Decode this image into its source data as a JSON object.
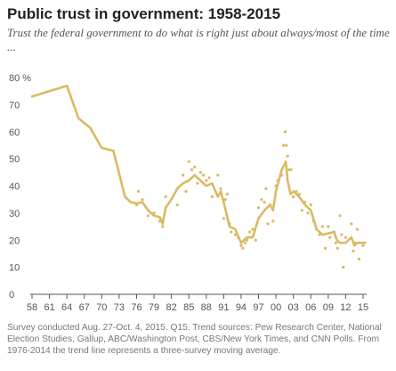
{
  "header": {
    "title": "Public trust in government: 1958-2015",
    "subtitle": "Trust the federal government to do what is right just about always/most of the time ..."
  },
  "note": "Survey conducted Aug. 27-Oct. 4, 2015. Q15. Trend sources: Pew Research Center, National Election Studies, Gallup, ABC/Washington Post, CBS/New York Times, and CNN Polls. From 1976-2014 the trend line represents a three-survey moving average.",
  "colors": {
    "series": "#D9BA64",
    "axis": "#555555"
  },
  "chart_data": {
    "type": "line",
    "title": "Public trust in government: 1958-2015",
    "subtitle": "Trust the federal government to do what is right just about always/most of the time ...",
    "xlim": [
      1958,
      2015
    ],
    "ylim": [
      0,
      80
    ],
    "x_tick_labels": [
      "58",
      "61",
      "64",
      "67",
      "70",
      "73",
      "76",
      "79",
      "82",
      "85",
      "88",
      "91",
      "94",
      "97",
      "00",
      "03",
      "06",
      "09",
      "12",
      "15"
    ],
    "y_tick_labels": [
      "0",
      "10",
      "20",
      "30",
      "40",
      "50",
      "60",
      "70",
      "80 %"
    ],
    "grid": false,
    "series": [
      {
        "type": "line",
        "points": [
          [
            1958,
            73
          ],
          [
            1964,
            77
          ],
          [
            1966,
            65
          ],
          [
            1968,
            61.5
          ],
          [
            1970,
            54
          ],
          [
            1972,
            53
          ],
          [
            1974,
            36
          ],
          [
            1975,
            34
          ],
          [
            1976,
            33.5
          ],
          [
            1977,
            34
          ],
          [
            1978,
            31
          ],
          [
            1979,
            29
          ],
          [
            1980,
            28.5
          ],
          [
            1980.5,
            26
          ],
          [
            1981,
            32
          ],
          [
            1982,
            35
          ],
          [
            1983,
            39
          ],
          [
            1984,
            41
          ],
          [
            1985,
            42
          ],
          [
            1986,
            44
          ],
          [
            1987,
            42
          ],
          [
            1988,
            40
          ],
          [
            1989,
            41
          ],
          [
            1990,
            36
          ],
          [
            1990.5,
            38
          ],
          [
            1991,
            34
          ],
          [
            1992,
            25
          ],
          [
            1993,
            24
          ],
          [
            1994,
            19
          ],
          [
            1995,
            21
          ],
          [
            1996,
            21
          ],
          [
            1997,
            28
          ],
          [
            1998,
            31
          ],
          [
            1999,
            33
          ],
          [
            1999.5,
            31
          ],
          [
            2000,
            38
          ],
          [
            2001,
            46
          ],
          [
            2001.7,
            49
          ],
          [
            2002,
            42
          ],
          [
            2002.5,
            37
          ],
          [
            2003,
            38
          ],
          [
            2004,
            36
          ],
          [
            2005,
            33
          ],
          [
            2006,
            31
          ],
          [
            2007,
            24
          ],
          [
            2008,
            22
          ],
          [
            2009,
            22.5
          ],
          [
            2010,
            23
          ],
          [
            2010.5,
            20
          ],
          [
            2011,
            19
          ],
          [
            2012,
            19
          ],
          [
            2013,
            21
          ],
          [
            2013.5,
            18
          ],
          [
            2014,
            19
          ],
          [
            2015,
            19
          ]
        ]
      },
      {
        "type": "scatter",
        "points": [
          [
            1976,
            33
          ],
          [
            1976.3,
            38
          ],
          [
            1977,
            35
          ],
          [
            1978,
            29
          ],
          [
            1979,
            30
          ],
          [
            1980,
            27
          ],
          [
            1980.5,
            25
          ],
          [
            1981,
            36
          ],
          [
            1983,
            33
          ],
          [
            1984,
            44
          ],
          [
            1984.5,
            38
          ],
          [
            1985,
            49
          ],
          [
            1985.5,
            46
          ],
          [
            1986,
            47
          ],
          [
            1986.5,
            41
          ],
          [
            1987,
            45
          ],
          [
            1987.5,
            44
          ],
          [
            1988,
            42
          ],
          [
            1988.5,
            43
          ],
          [
            1989,
            36
          ],
          [
            1990,
            44
          ],
          [
            1990.5,
            39
          ],
          [
            1991,
            28
          ],
          [
            1991.3,
            35
          ],
          [
            1991.6,
            37
          ],
          [
            1992,
            26
          ],
          [
            1992.3,
            23
          ],
          [
            1993,
            22
          ],
          [
            1993.5,
            21
          ],
          [
            1994,
            18
          ],
          [
            1994.3,
            17
          ],
          [
            1994.7,
            19
          ],
          [
            1995,
            20
          ],
          [
            1995.5,
            23
          ],
          [
            1996,
            24
          ],
          [
            1996.5,
            20
          ],
          [
            1997,
            32
          ],
          [
            1997.5,
            35
          ],
          [
            1998,
            34
          ],
          [
            1998.3,
            39
          ],
          [
            1998.6,
            26
          ],
          [
            1999,
            33
          ],
          [
            1999.5,
            27
          ],
          [
            2000,
            40
          ],
          [
            2000.3,
            42
          ],
          [
            2001,
            44
          ],
          [
            2001.3,
            55
          ],
          [
            2001.6,
            60
          ],
          [
            2001.8,
            55
          ],
          [
            2002,
            51
          ],
          [
            2002.3,
            46
          ],
          [
            2002.6,
            46
          ],
          [
            2003,
            36
          ],
          [
            2003.5,
            38
          ],
          [
            2004,
            37
          ],
          [
            2004.5,
            31
          ],
          [
            2005,
            34
          ],
          [
            2005.5,
            30
          ],
          [
            2006,
            33
          ],
          [
            2006.5,
            27
          ],
          [
            2007,
            24
          ],
          [
            2007.5,
            22
          ],
          [
            2008,
            25
          ],
          [
            2008.5,
            17
          ],
          [
            2009,
            25
          ],
          [
            2009.3,
            21
          ],
          [
            2010,
            23
          ],
          [
            2010.3,
            19
          ],
          [
            2010.6,
            17
          ],
          [
            2011,
            29
          ],
          [
            2011.3,
            22
          ],
          [
            2011.6,
            10
          ],
          [
            2012,
            21
          ],
          [
            2013,
            26
          ],
          [
            2013.3,
            16
          ],
          [
            2013.6,
            19
          ],
          [
            2014,
            24
          ],
          [
            2014.3,
            13
          ],
          [
            2015,
            18
          ],
          [
            2015.3,
            19
          ]
        ]
      }
    ]
  }
}
